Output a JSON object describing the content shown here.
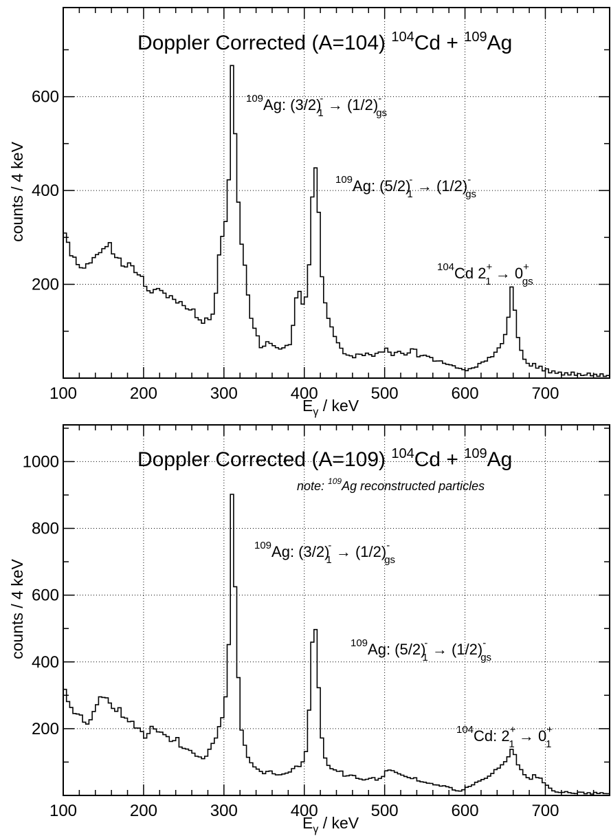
{
  "chart_data": [
    {
      "type": "histogram",
      "title": "Doppler Corrected (A=104) ¹⁰⁴Cd + ¹⁰⁹Ag",
      "title_parts": {
        "pre": "Doppler Corrected (A=104) ",
        "sup1": "104",
        "mid": "Cd + ",
        "sup2": "109",
        "post": "Ag"
      },
      "xlabel": "Eγ / keV",
      "xlabel_parts": {
        "main": "E",
        "sub": "γ",
        "rest": " / keV"
      },
      "ylabel": "counts / 4 keV",
      "xlim": [
        100,
        780
      ],
      "ylim": [
        0,
        790
      ],
      "xticks": [
        100,
        200,
        300,
        400,
        500,
        600,
        700
      ],
      "yticks": [
        200,
        400,
        600
      ],
      "bin_width": 4,
      "grid": true,
      "annotations": [
        {
          "text": "¹⁰⁹Ag: (3/2)⁻₁ → (1/2)⁻gs",
          "energy": 309
        },
        {
          "text": "¹⁰⁹Ag: (5/2)⁻₁ → (1/2)⁻gs",
          "energy": 415
        },
        {
          "text": "¹⁰⁴Cd 2⁺₁ → 0⁺gs",
          "energy": 658
        }
      ],
      "anchors": [
        [
          100,
          310
        ],
        [
          104,
          300
        ],
        [
          108,
          275
        ],
        [
          112,
          260
        ],
        [
          116,
          245
        ],
        [
          120,
          250
        ],
        [
          124,
          235
        ],
        [
          128,
          245
        ],
        [
          132,
          255
        ],
        [
          136,
          250
        ],
        [
          140,
          265
        ],
        [
          144,
          270
        ],
        [
          148,
          275
        ],
        [
          152,
          285
        ],
        [
          156,
          290
        ],
        [
          160,
          270
        ],
        [
          164,
          275
        ],
        [
          168,
          255
        ],
        [
          172,
          260
        ],
        [
          176,
          225
        ],
        [
          180,
          245
        ],
        [
          184,
          240
        ],
        [
          188,
          225
        ],
        [
          192,
          215
        ],
        [
          196,
          230
        ],
        [
          200,
          200
        ],
        [
          204,
          185
        ],
        [
          208,
          195
        ],
        [
          212,
          180
        ],
        [
          216,
          200
        ],
        [
          220,
          175
        ],
        [
          224,
          185
        ],
        [
          228,
          165
        ],
        [
          232,
          190
        ],
        [
          236,
          160
        ],
        [
          240,
          175
        ],
        [
          244,
          150
        ],
        [
          248,
          175
        ],
        [
          252,
          145
        ],
        [
          256,
          150
        ],
        [
          260,
          145
        ],
        [
          264,
          140
        ],
        [
          268,
          125
        ],
        [
          272,
          115
        ],
        [
          276,
          125
        ],
        [
          280,
          130
        ],
        [
          284,
          125
        ],
        [
          288,
          145
        ],
        [
          292,
          230
        ],
        [
          296,
          300
        ],
        [
          300,
          315
        ],
        [
          304,
          340
        ],
        [
          306,
          420
        ],
        [
          308,
          660
        ],
        [
          310,
          660
        ],
        [
          312,
          600
        ],
        [
          316,
          440
        ],
        [
          320,
          300
        ],
        [
          324,
          260
        ],
        [
          328,
          220
        ],
        [
          332,
          140
        ],
        [
          336,
          110
        ],
        [
          340,
          100
        ],
        [
          344,
          75
        ],
        [
          348,
          60
        ],
        [
          352,
          80
        ],
        [
          356,
          70
        ],
        [
          360,
          75
        ],
        [
          364,
          60
        ],
        [
          368,
          70
        ],
        [
          372,
          55
        ],
        [
          376,
          70
        ],
        [
          380,
          65
        ],
        [
          384,
          80
        ],
        [
          388,
          140
        ],
        [
          392,
          190
        ],
        [
          396,
          170
        ],
        [
          400,
          145
        ],
        [
          404,
          190
        ],
        [
          408,
          300
        ],
        [
          412,
          480
        ],
        [
          416,
          430
        ],
        [
          420,
          270
        ],
        [
          424,
          170
        ],
        [
          428,
          140
        ],
        [
          432,
          120
        ],
        [
          436,
          100
        ],
        [
          440,
          85
        ],
        [
          444,
          70
        ],
        [
          448,
          60
        ],
        [
          452,
          45
        ],
        [
          456,
          55
        ],
        [
          460,
          40
        ],
        [
          464,
          50
        ],
        [
          468,
          55
        ],
        [
          472,
          45
        ],
        [
          476,
          50
        ],
        [
          480,
          55
        ],
        [
          484,
          45
        ],
        [
          488,
          50
        ],
        [
          492,
          60
        ],
        [
          496,
          55
        ],
        [
          500,
          60
        ],
        [
          504,
          65
        ],
        [
          508,
          50
        ],
        [
          512,
          45
        ],
        [
          516,
          65
        ],
        [
          520,
          50
        ],
        [
          524,
          55
        ],
        [
          528,
          45
        ],
        [
          532,
          60
        ],
        [
          536,
          65
        ],
        [
          540,
          55
        ],
        [
          544,
          40
        ],
        [
          548,
          55
        ],
        [
          552,
          45
        ],
        [
          556,
          50
        ],
        [
          560,
          40
        ],
        [
          564,
          35
        ],
        [
          568,
          40
        ],
        [
          572,
          30
        ],
        [
          576,
          35
        ],
        [
          580,
          25
        ],
        [
          584,
          30
        ],
        [
          588,
          20
        ],
        [
          592,
          25
        ],
        [
          596,
          15
        ],
        [
          600,
          20
        ],
        [
          604,
          15
        ],
        [
          608,
          25
        ],
        [
          612,
          20
        ],
        [
          616,
          30
        ],
        [
          620,
          35
        ],
        [
          624,
          30
        ],
        [
          628,
          40
        ],
        [
          632,
          45
        ],
        [
          636,
          50
        ],
        [
          640,
          60
        ],
        [
          644,
          65
        ],
        [
          648,
          80
        ],
        [
          652,
          100
        ],
        [
          656,
          150
        ],
        [
          658,
          190
        ],
        [
          662,
          150
        ],
        [
          666,
          90
        ],
        [
          670,
          60
        ],
        [
          674,
          40
        ],
        [
          678,
          30
        ],
        [
          682,
          25
        ],
        [
          686,
          30
        ],
        [
          690,
          20
        ],
        [
          694,
          25
        ],
        [
          698,
          15
        ],
        [
          702,
          20
        ],
        [
          706,
          10
        ],
        [
          710,
          15
        ],
        [
          714,
          10
        ],
        [
          718,
          12
        ],
        [
          722,
          8
        ],
        [
          726,
          10
        ],
        [
          730,
          8
        ],
        [
          734,
          12
        ],
        [
          738,
          8
        ],
        [
          742,
          10
        ],
        [
          746,
          5
        ],
        [
          750,
          8
        ],
        [
          754,
          10
        ],
        [
          758,
          6
        ],
        [
          762,
          10
        ],
        [
          766,
          5
        ],
        [
          770,
          8
        ],
        [
          774,
          5
        ],
        [
          778,
          6
        ]
      ]
    },
    {
      "type": "histogram",
      "title": "Doppler Corrected (A=109) ¹⁰⁴Cd + ¹⁰⁹Ag",
      "title_parts": {
        "pre": "Doppler Corrected (A=109) ",
        "sup1": "104",
        "mid": "Cd + ",
        "sup2": "109",
        "post": "Ag"
      },
      "note_parts": {
        "pre": "note: ",
        "sup": "109",
        "post": "Ag reconstructed particles"
      },
      "xlabel": "Eγ / keV",
      "xlabel_parts": {
        "main": "E",
        "sub": "γ",
        "rest": " / keV"
      },
      "ylabel": "counts / 4 keV",
      "xlim": [
        100,
        780
      ],
      "ylim": [
        0,
        1110
      ],
      "xticks": [
        100,
        200,
        300,
        400,
        500,
        600,
        700
      ],
      "yticks": [
        200,
        400,
        600,
        800,
        1000
      ],
      "bin_width": 4,
      "grid": true,
      "annotations": [
        {
          "text": "¹⁰⁹Ag: (3/2)⁻₁ → (1/2)⁻gs",
          "energy": 309
        },
        {
          "text": "¹⁰⁹Ag: (5/2)⁻₁ → (1/2)⁻gs",
          "energy": 415
        },
        {
          "text": "¹⁰⁴Cd: 2⁺₁ → 0⁺₁",
          "energy": 658
        }
      ],
      "anchors": [
        [
          100,
          345
        ],
        [
          104,
          290
        ],
        [
          108,
          255
        ],
        [
          112,
          265
        ],
        [
          116,
          240
        ],
        [
          120,
          250
        ],
        [
          124,
          230
        ],
        [
          128,
          215
        ],
        [
          132,
          225
        ],
        [
          136,
          240
        ],
        [
          140,
          270
        ],
        [
          144,
          280
        ],
        [
          148,
          305
        ],
        [
          152,
          280
        ],
        [
          156,
          290
        ],
        [
          160,
          270
        ],
        [
          164,
          250
        ],
        [
          168,
          265
        ],
        [
          172,
          245
        ],
        [
          176,
          230
        ],
        [
          180,
          220
        ],
        [
          184,
          235
        ],
        [
          188,
          215
        ],
        [
          192,
          200
        ],
        [
          196,
          215
        ],
        [
          200,
          160
        ],
        [
          204,
          180
        ],
        [
          208,
          190
        ],
        [
          212,
          210
        ],
        [
          216,
          200
        ],
        [
          220,
          175
        ],
        [
          224,
          195
        ],
        [
          228,
          170
        ],
        [
          232,
          175
        ],
        [
          236,
          150
        ],
        [
          240,
          185
        ],
        [
          244,
          155
        ],
        [
          248,
          140
        ],
        [
          252,
          145
        ],
        [
          256,
          135
        ],
        [
          260,
          130
        ],
        [
          264,
          125
        ],
        [
          268,
          110
        ],
        [
          272,
          115
        ],
        [
          276,
          110
        ],
        [
          280,
          130
        ],
        [
          284,
          145
        ],
        [
          288,
          160
        ],
        [
          292,
          190
        ],
        [
          296,
          220
        ],
        [
          300,
          250
        ],
        [
          304,
          350
        ],
        [
          306,
          460
        ],
        [
          308,
          905
        ],
        [
          310,
          900
        ],
        [
          312,
          740
        ],
        [
          316,
          500
        ],
        [
          320,
          220
        ],
        [
          324,
          165
        ],
        [
          328,
          130
        ],
        [
          332,
          100
        ],
        [
          336,
          90
        ],
        [
          340,
          80
        ],
        [
          344,
          75
        ],
        [
          348,
          70
        ],
        [
          352,
          65
        ],
        [
          356,
          75
        ],
        [
          360,
          70
        ],
        [
          364,
          60
        ],
        [
          368,
          65
        ],
        [
          372,
          55
        ],
        [
          376,
          70
        ],
        [
          380,
          65
        ],
        [
          384,
          75
        ],
        [
          388,
          90
        ],
        [
          392,
          80
        ],
        [
          396,
          95
        ],
        [
          400,
          100
        ],
        [
          404,
          155
        ],
        [
          408,
          340
        ],
        [
          412,
          580
        ],
        [
          416,
          420
        ],
        [
          420,
          230
        ],
        [
          424,
          120
        ],
        [
          428,
          100
        ],
        [
          432,
          80
        ],
        [
          436,
          85
        ],
        [
          440,
          70
        ],
        [
          444,
          80
        ],
        [
          448,
          65
        ],
        [
          452,
          55
        ],
        [
          456,
          60
        ],
        [
          460,
          65
        ],
        [
          464,
          55
        ],
        [
          468,
          50
        ],
        [
          472,
          45
        ],
        [
          476,
          50
        ],
        [
          480,
          45
        ],
        [
          484,
          55
        ],
        [
          488,
          50
        ],
        [
          492,
          45
        ],
        [
          496,
          55
        ],
        [
          500,
          60
        ],
        [
          504,
          85
        ],
        [
          508,
          70
        ],
        [
          512,
          75
        ],
        [
          516,
          60
        ],
        [
          520,
          65
        ],
        [
          524,
          55
        ],
        [
          528,
          60
        ],
        [
          532,
          50
        ],
        [
          536,
          55
        ],
        [
          540,
          50
        ],
        [
          544,
          40
        ],
        [
          548,
          45
        ],
        [
          552,
          35
        ],
        [
          556,
          40
        ],
        [
          560,
          30
        ],
        [
          564,
          35
        ],
        [
          568,
          30
        ],
        [
          572,
          25
        ],
        [
          576,
          30
        ],
        [
          580,
          25
        ],
        [
          584,
          20
        ],
        [
          588,
          15
        ],
        [
          592,
          10
        ],
        [
          596,
          15
        ],
        [
          600,
          20
        ],
        [
          604,
          25
        ],
        [
          608,
          30
        ],
        [
          612,
          35
        ],
        [
          616,
          40
        ],
        [
          620,
          45
        ],
        [
          624,
          50
        ],
        [
          628,
          55
        ],
        [
          632,
          60
        ],
        [
          636,
          70
        ],
        [
          640,
          80
        ],
        [
          644,
          90
        ],
        [
          648,
          100
        ],
        [
          652,
          110
        ],
        [
          656,
          130
        ],
        [
          658,
          135
        ],
        [
          662,
          120
        ],
        [
          666,
          90
        ],
        [
          670,
          75
        ],
        [
          674,
          60
        ],
        [
          678,
          55
        ],
        [
          682,
          50
        ],
        [
          686,
          60
        ],
        [
          690,
          55
        ],
        [
          694,
          50
        ],
        [
          698,
          40
        ],
        [
          702,
          30
        ],
        [
          706,
          20
        ],
        [
          710,
          15
        ],
        [
          714,
          12
        ],
        [
          718,
          10
        ],
        [
          722,
          8
        ],
        [
          726,
          12
        ],
        [
          730,
          10
        ],
        [
          734,
          8
        ],
        [
          738,
          6
        ],
        [
          742,
          10
        ],
        [
          746,
          8
        ],
        [
          750,
          5
        ],
        [
          754,
          8
        ],
        [
          758,
          6
        ],
        [
          762,
          10
        ],
        [
          766,
          5
        ],
        [
          770,
          8
        ],
        [
          774,
          5
        ],
        [
          778,
          6
        ]
      ]
    }
  ]
}
